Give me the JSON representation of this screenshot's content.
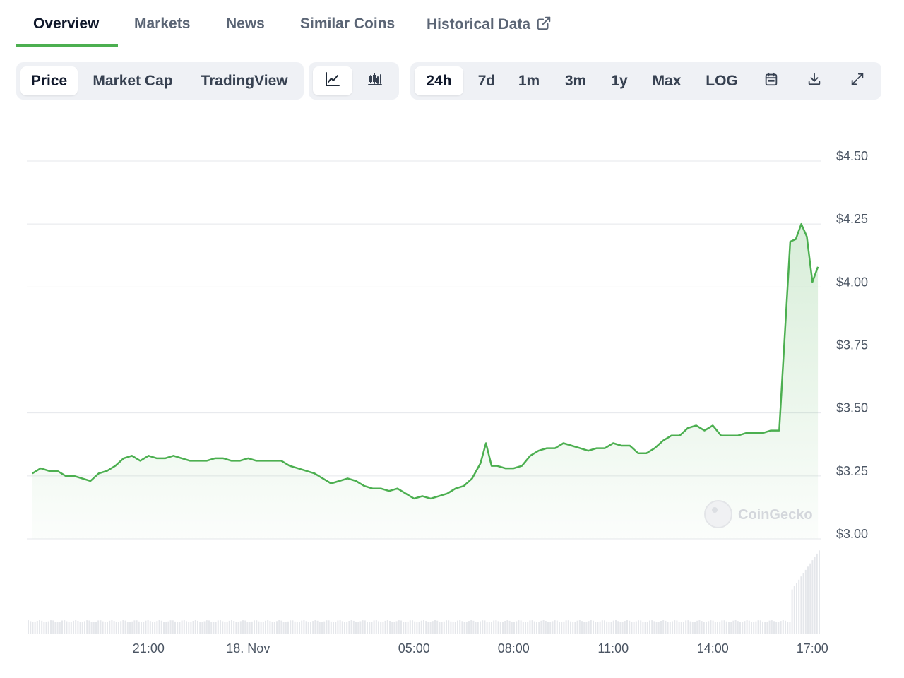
{
  "tabs": [
    {
      "label": "Overview",
      "active": true
    },
    {
      "label": "Markets",
      "active": false
    },
    {
      "label": "News",
      "active": false
    },
    {
      "label": "Similar Coins",
      "active": false
    },
    {
      "label": "Historical Data",
      "active": false,
      "external_icon": "external-link-icon"
    }
  ],
  "view_toggle": [
    {
      "label": "Price",
      "active": true
    },
    {
      "label": "Market Cap",
      "active": false
    },
    {
      "label": "TradingView",
      "active": false
    }
  ],
  "chart_style": [
    {
      "icon": "line-chart-icon",
      "active": true
    },
    {
      "icon": "candlestick-chart-icon",
      "active": false
    }
  ],
  "time_range": [
    {
      "label": "24h",
      "active": true
    },
    {
      "label": "7d",
      "active": false
    },
    {
      "label": "1m",
      "active": false
    },
    {
      "label": "3m",
      "active": false
    },
    {
      "label": "1y",
      "active": false
    },
    {
      "label": "Max",
      "active": false
    },
    {
      "label": "LOG",
      "active": false
    }
  ],
  "tools": [
    {
      "icon": "calendar-icon"
    },
    {
      "icon": "download-icon"
    },
    {
      "icon": "expand-icon"
    }
  ],
  "watermark": "CoinGecko",
  "colors": {
    "line": "#4caf50",
    "tab_underline": "#4caf50",
    "volume_bar": "#e5e7eb"
  },
  "chart_data": {
    "type": "area",
    "y_ticks": [
      "$4.50",
      "$4.25",
      "$4.00",
      "$3.75",
      "$3.50",
      "$3.25",
      "$3.00"
    ],
    "ylim": [
      3.0,
      4.5
    ],
    "x_ticks": [
      {
        "label": "21:00",
        "time": "17 Nov 21:00"
      },
      {
        "label": "18. Nov",
        "time": "18 Nov 00:00"
      },
      {
        "label": "05:00",
        "time": "18 Nov 05:00"
      },
      {
        "label": "08:00",
        "time": "18 Nov 08:00"
      },
      {
        "label": "11:00",
        "time": "18 Nov 11:00"
      },
      {
        "label": "14:00",
        "time": "18 Nov 14:00"
      },
      {
        "label": "17:00",
        "time": "18 Nov 17:00"
      }
    ],
    "series": [
      {
        "points": [
          [
            "17 Nov 17:30",
            3.26
          ],
          [
            "17 Nov 17:45",
            3.28
          ],
          [
            "17 Nov 18:00",
            3.27
          ],
          [
            "17 Nov 18:15",
            3.27
          ],
          [
            "17 Nov 18:30",
            3.25
          ],
          [
            "17 Nov 18:45",
            3.25
          ],
          [
            "17 Nov 19:00",
            3.24
          ],
          [
            "17 Nov 19:15",
            3.23
          ],
          [
            "17 Nov 19:30",
            3.26
          ],
          [
            "17 Nov 19:45",
            3.27
          ],
          [
            "17 Nov 20:00",
            3.29
          ],
          [
            "17 Nov 20:15",
            3.32
          ],
          [
            "17 Nov 20:30",
            3.33
          ],
          [
            "17 Nov 20:45",
            3.31
          ],
          [
            "17 Nov 21:00",
            3.33
          ],
          [
            "17 Nov 21:15",
            3.32
          ],
          [
            "17 Nov 21:30",
            3.32
          ],
          [
            "17 Nov 21:45",
            3.33
          ],
          [
            "17 Nov 22:00",
            3.32
          ],
          [
            "17 Nov 22:15",
            3.31
          ],
          [
            "17 Nov 22:30",
            3.31
          ],
          [
            "17 Nov 22:45",
            3.31
          ],
          [
            "17 Nov 23:00",
            3.32
          ],
          [
            "17 Nov 23:15",
            3.32
          ],
          [
            "17 Nov 23:30",
            3.31
          ],
          [
            "17 Nov 23:45",
            3.31
          ],
          [
            "18 Nov 00:00",
            3.32
          ],
          [
            "18 Nov 00:15",
            3.31
          ],
          [
            "18 Nov 00:30",
            3.31
          ],
          [
            "18 Nov 00:45",
            3.31
          ],
          [
            "18 Nov 01:00",
            3.31
          ],
          [
            "18 Nov 01:15",
            3.29
          ],
          [
            "18 Nov 01:30",
            3.28
          ],
          [
            "18 Nov 01:45",
            3.27
          ],
          [
            "18 Nov 02:00",
            3.26
          ],
          [
            "18 Nov 02:15",
            3.24
          ],
          [
            "18 Nov 02:30",
            3.22
          ],
          [
            "18 Nov 02:45",
            3.23
          ],
          [
            "18 Nov 03:00",
            3.24
          ],
          [
            "18 Nov 03:15",
            3.23
          ],
          [
            "18 Nov 03:30",
            3.21
          ],
          [
            "18 Nov 03:45",
            3.2
          ],
          [
            "18 Nov 04:00",
            3.2
          ],
          [
            "18 Nov 04:15",
            3.19
          ],
          [
            "18 Nov 04:30",
            3.2
          ],
          [
            "18 Nov 04:45",
            3.18
          ],
          [
            "18 Nov 05:00",
            3.16
          ],
          [
            "18 Nov 05:15",
            3.17
          ],
          [
            "18 Nov 05:30",
            3.16
          ],
          [
            "18 Nov 05:45",
            3.17
          ],
          [
            "18 Nov 06:00",
            3.18
          ],
          [
            "18 Nov 06:15",
            3.2
          ],
          [
            "18 Nov 06:30",
            3.21
          ],
          [
            "18 Nov 06:45",
            3.24
          ],
          [
            "18 Nov 07:00",
            3.3
          ],
          [
            "18 Nov 07:10",
            3.38
          ],
          [
            "18 Nov 07:20",
            3.29
          ],
          [
            "18 Nov 07:30",
            3.29
          ],
          [
            "18 Nov 07:45",
            3.28
          ],
          [
            "18 Nov 08:00",
            3.28
          ],
          [
            "18 Nov 08:15",
            3.29
          ],
          [
            "18 Nov 08:30",
            3.33
          ],
          [
            "18 Nov 08:45",
            3.35
          ],
          [
            "18 Nov 09:00",
            3.36
          ],
          [
            "18 Nov 09:15",
            3.36
          ],
          [
            "18 Nov 09:30",
            3.38
          ],
          [
            "18 Nov 09:45",
            3.37
          ],
          [
            "18 Nov 10:00",
            3.36
          ],
          [
            "18 Nov 10:15",
            3.35
          ],
          [
            "18 Nov 10:30",
            3.36
          ],
          [
            "18 Nov 10:45",
            3.36
          ],
          [
            "18 Nov 11:00",
            3.38
          ],
          [
            "18 Nov 11:15",
            3.37
          ],
          [
            "18 Nov 11:30",
            3.37
          ],
          [
            "18 Nov 11:45",
            3.34
          ],
          [
            "18 Nov 12:00",
            3.34
          ],
          [
            "18 Nov 12:15",
            3.36
          ],
          [
            "18 Nov 12:30",
            3.39
          ],
          [
            "18 Nov 12:45",
            3.41
          ],
          [
            "18 Nov 13:00",
            3.41
          ],
          [
            "18 Nov 13:15",
            3.44
          ],
          [
            "18 Nov 13:30",
            3.45
          ],
          [
            "18 Nov 13:45",
            3.43
          ],
          [
            "18 Nov 14:00",
            3.45
          ],
          [
            "18 Nov 14:15",
            3.41
          ],
          [
            "18 Nov 14:30",
            3.41
          ],
          [
            "18 Nov 14:45",
            3.41
          ],
          [
            "18 Nov 15:00",
            3.42
          ],
          [
            "18 Nov 15:15",
            3.42
          ],
          [
            "18 Nov 15:30",
            3.42
          ],
          [
            "18 Nov 15:45",
            3.43
          ],
          [
            "18 Nov 16:00",
            3.43
          ],
          [
            "18 Nov 16:20",
            4.18
          ],
          [
            "18 Nov 16:30",
            4.19
          ],
          [
            "18 Nov 16:40",
            4.25
          ],
          [
            "18 Nov 16:50",
            4.2
          ],
          [
            "18 Nov 17:00",
            4.02
          ],
          [
            "18 Nov 17:10",
            4.08
          ]
        ]
      }
    ],
    "volume": "24h trading volume shown as small bars along the bottom; roughly flat until about 16:30 on 18 Nov, then rising sharply to a maximum around 17:10",
    "grid": true,
    "y_axis_position": "right"
  }
}
